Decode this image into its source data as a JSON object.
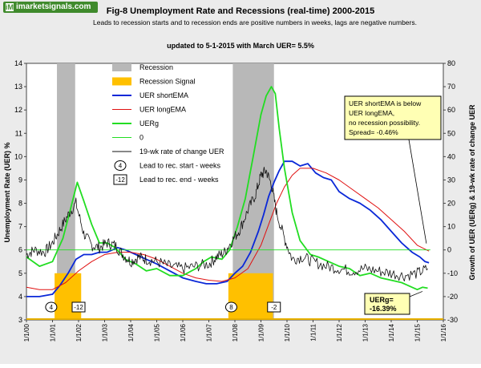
{
  "logo": {
    "mark": "iM",
    "text": "imarketsignals.com"
  },
  "chart_data": {
    "type": "line",
    "title": "Fig-8  Unemployment Rate and Recessions (real-time) 2000-2015",
    "subtitle": "Leads to recession starts and to recession ends are positive numbers in weeks, lags are negative numbers.",
    "update_note": "updated to 5-1-2015  with March UER=  5.5%",
    "ylabel": "Unemployment Rate (UER)  %",
    "y2label": "Growth of UER  (UERg)  &  19-wk rate of change UER",
    "ylim": [
      3,
      14
    ],
    "y2lim": [
      -30,
      80
    ],
    "xlim": [
      2000,
      2016
    ],
    "yticks": [
      "3",
      "4",
      "5",
      "6",
      "7",
      "8",
      "9",
      "10",
      "11",
      "12",
      "13",
      "14"
    ],
    "y2ticks": [
      "-30",
      "-20",
      "-10",
      "0",
      "10",
      "20",
      "30",
      "40",
      "50",
      "60",
      "70",
      "80"
    ],
    "xticks": [
      "1/1/00",
      "1/1/01",
      "1/1/02",
      "1/1/03",
      "1/1/04",
      "1/1/05",
      "1/1/06",
      "1/1/07",
      "1/1/08",
      "1/1/09",
      "1/1/10",
      "1/1/11",
      "1/1/12",
      "1/1/13",
      "1/1/14",
      "1/1/15",
      "1/1/16"
    ],
    "recessions": [
      [
        2001.17,
        2001.87
      ],
      [
        2007.92,
        2009.5
      ]
    ],
    "recession_signals": [
      [
        2001.08,
        2002.1
      ],
      [
        2007.75,
        2009.46
      ]
    ],
    "legend": [
      {
        "label": "Recession",
        "color": "#b8b8b8",
        "kind": "box"
      },
      {
        "label": "Recession Signal",
        "color": "#ffc000",
        "kind": "box"
      },
      {
        "label": "UER shortEMA",
        "color": "#0a28d8",
        "kind": "line"
      },
      {
        "label": "UER longEMA",
        "color": "#e01010",
        "kind": "line"
      },
      {
        "label": "UERg",
        "color": "#22dd22",
        "kind": "line"
      },
      {
        "label": "0",
        "color": "#22dd22",
        "kind": "line"
      },
      {
        "label": "19-wk rate of change UER",
        "color": "#111111",
        "kind": "line"
      },
      {
        "label": "Lead to rec. start - weeks",
        "marker": "4",
        "kind": "ellipse"
      },
      {
        "label": "Lead to rec. end - weeks",
        "marker": "-12",
        "kind": "rect"
      }
    ],
    "annotations": [
      {
        "text": "4",
        "kind": "ellipse",
        "x": 2000.95,
        "y": 3.55
      },
      {
        "text": "-12",
        "kind": "rect",
        "x": 2002.0,
        "y": 3.55
      },
      {
        "text": "8",
        "kind": "ellipse",
        "x": 2007.86,
        "y": 3.55
      },
      {
        "text": "-2",
        "kind": "rect",
        "x": 2009.5,
        "y": 3.55
      }
    ],
    "note_box": [
      "UER shortEMA  is below",
      "UER  longEMA,",
      "no recession possibility.",
      "Spread= -0.46%"
    ],
    "uerg_box": [
      "UERg=",
      "-16.39%"
    ],
    "series": [
      {
        "name": "UER shortEMA",
        "axis": "left",
        "color": "#0a28d8",
        "width": 1.8,
        "x": [
          2000.0,
          2000.5,
          2001.0,
          2001.3,
          2001.6,
          2001.9,
          2002.2,
          2002.5,
          2002.8,
          2003.1,
          2003.5,
          2003.8,
          2004.2,
          2004.6,
          2005.0,
          2005.5,
          2006.0,
          2006.5,
          2006.9,
          2007.3,
          2007.7,
          2008.0,
          2008.3,
          2008.6,
          2008.9,
          2009.1,
          2009.3,
          2009.5,
          2009.7,
          2009.9,
          2010.2,
          2010.5,
          2010.8,
          2011.1,
          2011.4,
          2011.7,
          2012.0,
          2012.4,
          2012.8,
          2013.2,
          2013.6,
          2014.0,
          2014.4,
          2014.8,
          2015.1,
          2015.3,
          2015.45
        ],
        "y": [
          4.0,
          4.0,
          4.1,
          4.5,
          5.0,
          5.6,
          5.8,
          5.8,
          5.9,
          5.9,
          6.1,
          6.0,
          5.8,
          5.6,
          5.4,
          5.1,
          4.8,
          4.65,
          4.55,
          4.55,
          4.65,
          5.0,
          5.3,
          5.9,
          6.8,
          7.5,
          8.3,
          8.9,
          9.4,
          9.8,
          9.8,
          9.6,
          9.7,
          9.3,
          9.1,
          9.0,
          8.5,
          8.2,
          8.0,
          7.7,
          7.3,
          6.8,
          6.3,
          5.9,
          5.7,
          5.5,
          5.45
        ]
      },
      {
        "name": "UER longEMA",
        "axis": "left",
        "color": "#e01010",
        "width": 1.0,
        "x": [
          2000.0,
          2000.5,
          2001.0,
          2001.5,
          2002.0,
          2002.5,
          2003.0,
          2003.5,
          2004.0,
          2004.5,
          2005.0,
          2005.5,
          2006.0,
          2006.5,
          2007.0,
          2007.5,
          2008.0,
          2008.5,
          2009.0,
          2009.3,
          2009.6,
          2009.9,
          2010.2,
          2010.5,
          2011.0,
          2011.5,
          2012.0,
          2012.5,
          2013.0,
          2013.5,
          2014.0,
          2014.5,
          2015.0,
          2015.45
        ],
        "y": [
          4.4,
          4.3,
          4.3,
          4.6,
          5.1,
          5.5,
          5.8,
          5.9,
          5.9,
          5.8,
          5.6,
          5.3,
          5.0,
          4.8,
          4.7,
          4.65,
          4.8,
          5.2,
          6.2,
          7.1,
          8.0,
          8.7,
          9.2,
          9.5,
          9.5,
          9.3,
          9.0,
          8.6,
          8.2,
          7.8,
          7.3,
          6.8,
          6.2,
          5.95
        ]
      },
      {
        "name": "UERg",
        "axis": "right",
        "color": "#22dd22",
        "width": 1.8,
        "x": [
          2000.0,
          2000.5,
          2001.0,
          2001.4,
          2001.7,
          2001.95,
          2002.2,
          2002.5,
          2002.8,
          2003.1,
          2003.4,
          2003.8,
          2004.2,
          2004.6,
          2005.0,
          2005.5,
          2006.0,
          2006.5,
          2006.8,
          2007.1,
          2007.5,
          2007.8,
          2008.1,
          2008.4,
          2008.7,
          2009.0,
          2009.2,
          2009.4,
          2009.55,
          2009.7,
          2009.9,
          2010.2,
          2010.5,
          2010.9,
          2011.2,
          2011.6,
          2012.0,
          2012.4,
          2012.8,
          2013.2,
          2013.6,
          2014.0,
          2014.4,
          2014.8,
          2015.0,
          2015.2,
          2015.4
        ],
        "y": [
          -3,
          -7,
          -5,
          5,
          18,
          29,
          21,
          11,
          3,
          3,
          1,
          -4,
          -6,
          -9,
          -8,
          -11,
          -11,
          -8,
          -5,
          -3,
          -4,
          0,
          10,
          22,
          40,
          58,
          66,
          70,
          67,
          52,
          35,
          16,
          4,
          -2,
          -3,
          -5,
          -7,
          -8,
          -11,
          -10,
          -12,
          -13,
          -14,
          -16,
          -17,
          -16,
          -16.4
        ]
      },
      {
        "name": "0",
        "axis": "right",
        "color": "#22dd22",
        "width": 0.8,
        "x": [
          2000.0,
          2015.5
        ],
        "y": [
          0,
          0
        ]
      },
      {
        "name": "19-wk rate of change UER",
        "axis": "right",
        "color": "#111111",
        "width": 0.8,
        "generated": "noisy",
        "x": [
          2000.0,
          2000.3,
          2000.7,
          2001.0,
          2001.3,
          2001.6,
          2001.9,
          2002.2,
          2002.5,
          2002.8,
          2003.1,
          2003.4,
          2003.7,
          2004.0,
          2004.3,
          2004.6,
          2005.0,
          2005.5,
          2006.0,
          2006.5,
          2007.0,
          2007.3,
          2007.6,
          2007.9,
          2008.2,
          2008.5,
          2008.8,
          2009.0,
          2009.2,
          2009.4,
          2009.6,
          2009.9,
          2010.2,
          2010.6,
          2011.0,
          2011.5,
          2012.0,
          2012.5,
          2013.0,
          2013.5,
          2014.0,
          2014.5,
          2015.0,
          2015.4
        ],
        "y": [
          -2,
          0,
          -1,
          3,
          9,
          15,
          20,
          7,
          2,
          1,
          3,
          2,
          -2,
          -5,
          -3,
          -4,
          -5,
          -7,
          -8,
          -7,
          -6,
          -3,
          -1,
          4,
          9,
          17,
          24,
          32,
          34,
          28,
          16,
          5,
          -4,
          -3,
          -5,
          -7,
          -8,
          -9,
          -8,
          -9,
          -10,
          -11,
          -10,
          -8
        ]
      }
    ]
  }
}
